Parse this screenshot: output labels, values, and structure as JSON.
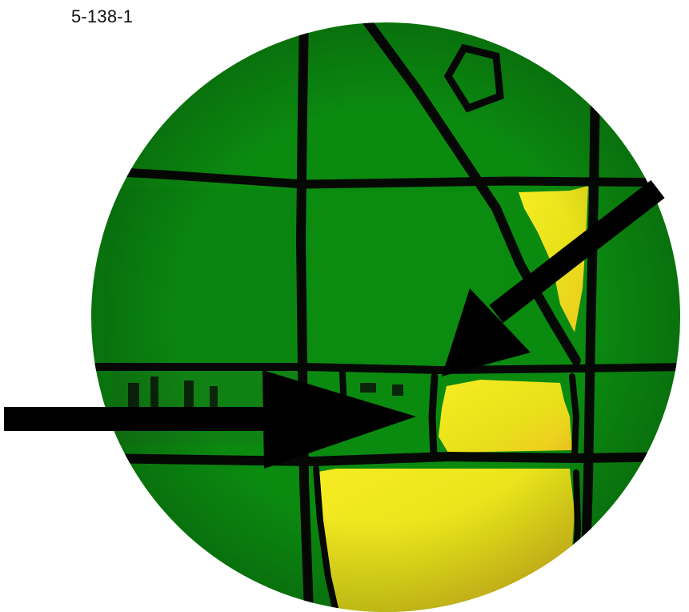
{
  "map": {
    "label": "5-138-1",
    "colors": {
      "vegetation": "#0b8a10",
      "vegetation_dark": "#077a0c",
      "highlight_area": "#f2e21c",
      "highlight_area_edge": "#e9c81a",
      "boundary_lines": "#050805",
      "arrows": "#000000",
      "background": "#ffffff"
    },
    "pointers": [
      {
        "name": "horizontal-arrow",
        "direction": "right"
      },
      {
        "name": "diagonal-arrow",
        "direction": "down-left"
      }
    ]
  }
}
